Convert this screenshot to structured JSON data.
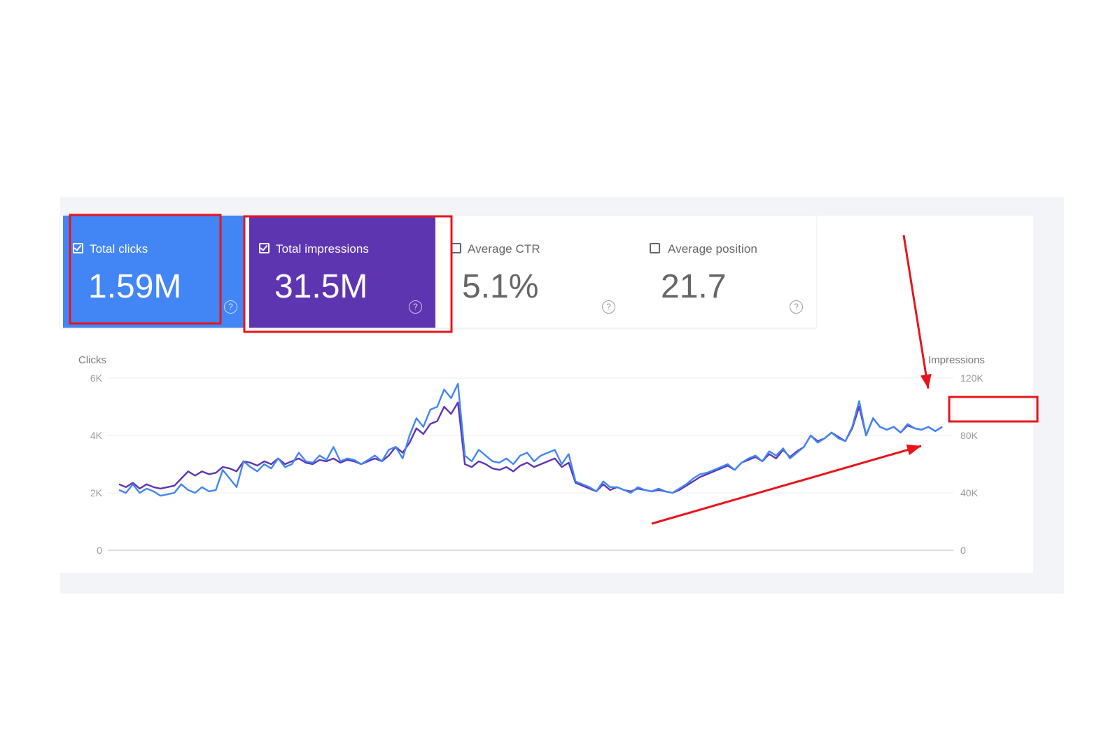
{
  "cards": {
    "clicks": {
      "label": "Total clicks",
      "value": "1.59M",
      "checked": true,
      "color": "#4285f4"
    },
    "impressions": {
      "label": "Total impressions",
      "value": "31.5M",
      "checked": true,
      "color": "#5e35b1"
    },
    "ctr": {
      "label": "Average CTR",
      "value": "5.1%",
      "checked": false
    },
    "position": {
      "label": "Average position",
      "value": "21.7",
      "checked": false
    }
  },
  "icons": {
    "help": "help-circle-icon",
    "checkbox": "checkbox-icon"
  },
  "chart_data": {
    "type": "line",
    "ylabel_left": "Clicks",
    "ylabel_right": "Impressions",
    "y_ticks_left": [
      "0",
      "2K",
      "4K",
      "6K"
    ],
    "y_ticks_right": [
      "0",
      "40K",
      "80K",
      "120K"
    ],
    "ylim_left": [
      0,
      6000
    ],
    "ylim_right": [
      0,
      120000
    ],
    "grid": true,
    "series": [
      {
        "axis": "left",
        "color": "#4285f4",
        "values": [
          2100,
          2000,
          2300,
          2000,
          2150,
          2050,
          1900,
          1950,
          2000,
          2300,
          2100,
          2000,
          2200,
          2050,
          2100,
          2800,
          2500,
          2200,
          3100,
          2900,
          2750,
          3000,
          2850,
          3200,
          2900,
          3000,
          3400,
          3100,
          3050,
          3300,
          3150,
          3600,
          3100,
          3200,
          3150,
          3000,
          3150,
          3300,
          3100,
          3500,
          3600,
          3200,
          4000,
          4600,
          4300,
          4900,
          5000,
          5600,
          5300,
          5800,
          3300,
          3100,
          3500,
          3300,
          3100,
          3050,
          3200,
          3000,
          3300,
          3400,
          3100,
          3300,
          3400,
          3500,
          3000,
          3350,
          2400,
          2300,
          2200,
          2050,
          2400,
          2200,
          2200,
          2100,
          2000,
          2200,
          2100,
          2050,
          2150,
          2050,
          2000,
          2150,
          2300,
          2500,
          2650,
          2700,
          2800,
          2900,
          3000,
          2800,
          3050,
          3200,
          3300,
          3100,
          3450,
          3300,
          3550,
          3200,
          3400,
          3600,
          4000,
          3750,
          3900,
          4100,
          3900,
          3800,
          4300,
          5200,
          4000,
          4600,
          4300,
          4200,
          4300,
          4100,
          4400,
          4250,
          4200,
          4300,
          4150,
          4300
        ]
      },
      {
        "axis": "right",
        "color": "#5e35b1",
        "values": [
          46000,
          44000,
          47000,
          43000,
          46000,
          44000,
          43000,
          44000,
          45000,
          50000,
          55000,
          52000,
          55000,
          53000,
          54000,
          58000,
          57000,
          55000,
          62000,
          61000,
          59000,
          62000,
          60000,
          64000,
          60000,
          62000,
          64000,
          61000,
          60000,
          63000,
          62000,
          64000,
          61000,
          63000,
          62000,
          60000,
          62000,
          64000,
          62000,
          66000,
          72000,
          68000,
          75000,
          85000,
          81000,
          88000,
          90000,
          100000,
          95000,
          103000,
          60000,
          58000,
          62000,
          60000,
          57000,
          56000,
          58000,
          55000,
          59000,
          61000,
          58000,
          60000,
          62000,
          64000,
          58000,
          61000,
          47000,
          45000,
          43000,
          41000,
          46000,
          42000,
          44000,
          42000,
          41000,
          43000,
          42000,
          41000,
          42000,
          41000,
          40000,
          42000,
          45000,
          48000,
          51000,
          53000,
          55000,
          57000,
          59000,
          56000,
          61000,
          63000,
          65000,
          62000,
          67000,
          64000,
          70000,
          65000,
          69000,
          72000,
          80000,
          76000,
          78000,
          82000,
          79000,
          76000,
          85000,
          100000,
          80000,
          92000,
          86000,
          84000,
          86000,
          82000,
          87000,
          85000,
          84000,
          86000,
          83000,
          86000
        ]
      }
    ]
  },
  "annotations": {
    "color": "#e8141c"
  }
}
